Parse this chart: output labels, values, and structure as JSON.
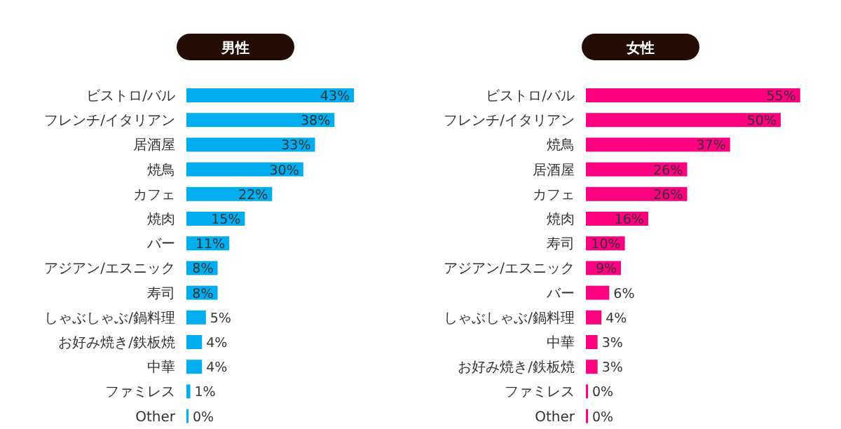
{
  "chart_data": [
    {
      "type": "bar",
      "orientation": "horizontal",
      "title": "男性",
      "color": "#00aeef",
      "categories": [
        "ビストロ/バル",
        "フレンチ/イタリアン",
        "居酒屋",
        "焼鳥",
        "カフェ",
        "焼肉",
        "バー",
        "アジアン/エスニック",
        "寿司",
        "しゃぶしゃぶ/鍋料理",
        "お好み焼き/鉄板焼",
        "中華",
        "ファミレス",
        "Other"
      ],
      "values": [
        43,
        38,
        33,
        30,
        22,
        15,
        11,
        8,
        8,
        5,
        4,
        4,
        1,
        0
      ],
      "value_labels": [
        "43%",
        "38%",
        "33%",
        "30%",
        "22%",
        "15%",
        "11%",
        "8%",
        "8%",
        "5%",
        "4%",
        "4%",
        "1%",
        "0%"
      ]
    },
    {
      "type": "bar",
      "orientation": "horizontal",
      "title": "女性",
      "color": "#ff0080",
      "categories": [
        "ビストロ/バル",
        "フレンチ/イタリアン",
        "焼鳥",
        "居酒屋",
        "カフェ",
        "焼肉",
        "寿司",
        "アジアン/エスニック",
        "バー",
        "しゃぶしゃぶ/鍋料理",
        "中華",
        "お好み焼き/鉄板焼",
        "ファミレス",
        "Other"
      ],
      "values": [
        55,
        50,
        37,
        26,
        26,
        16,
        10,
        9,
        6,
        4,
        3,
        3,
        0,
        0
      ],
      "value_labels": [
        "55%",
        "50%",
        "37%",
        "26%",
        "26%",
        "16%",
        "10%",
        "9%",
        "6%",
        "4%",
        "3%",
        "3%",
        "0%",
        "0%"
      ]
    }
  ]
}
